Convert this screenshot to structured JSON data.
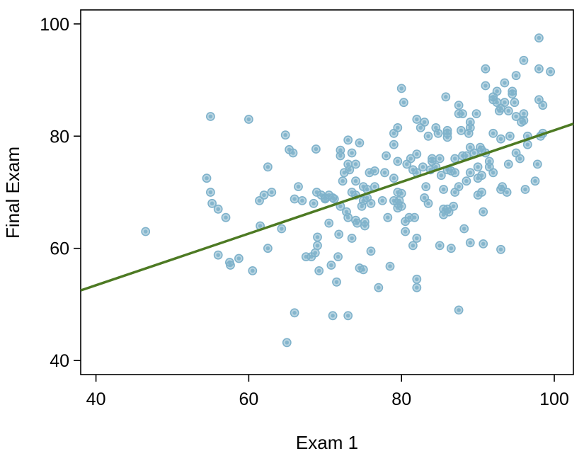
{
  "chart_data": {
    "type": "scatter",
    "title": "",
    "xlabel": "Exam 1",
    "ylabel": "Final Exam",
    "xlim": [
      38,
      102.5
    ],
    "ylim": [
      37.5,
      102.5
    ],
    "xticks": [
      "40",
      "60",
      "80",
      "100"
    ],
    "yticks": [
      "40",
      "60",
      "80",
      "100"
    ],
    "grid": false,
    "point_color": "#7fb2cb",
    "line_color": "#4d7a23",
    "regression_line": {
      "x": [
        38,
        102.5
      ],
      "y": [
        52.5,
        82.2
      ]
    },
    "points": [
      [
        46.5,
        63
      ],
      [
        54.5,
        72.5
      ],
      [
        55,
        83.5
      ],
      [
        55,
        70
      ],
      [
        55.2,
        68
      ],
      [
        56,
        67
      ],
      [
        56,
        58.8
      ],
      [
        57,
        65.5
      ],
      [
        57.5,
        57.5
      ],
      [
        57.6,
        57
      ],
      [
        58.7,
        58.2
      ],
      [
        60,
        83
      ],
      [
        60.5,
        56
      ],
      [
        61.4,
        68.5
      ],
      [
        61.5,
        64
      ],
      [
        62,
        69.5
      ],
      [
        62.5,
        74.5
      ],
      [
        62.5,
        60
      ],
      [
        63,
        70
      ],
      [
        64.3,
        63.5
      ],
      [
        64.8,
        80.2
      ],
      [
        65,
        43.2
      ],
      [
        65.3,
        77.6
      ],
      [
        65.8,
        77
      ],
      [
        66,
        68.8
      ],
      [
        66,
        48.5
      ],
      [
        66.5,
        71
      ],
      [
        67,
        68.5
      ],
      [
        67.5,
        58.5
      ],
      [
        68.2,
        58.5
      ],
      [
        68.5,
        68
      ],
      [
        68.7,
        59.2
      ],
      [
        68.8,
        77.7
      ],
      [
        68.9,
        70
      ],
      [
        69,
        62
      ],
      [
        69,
        60.5
      ],
      [
        69.2,
        56
      ],
      [
        69.5,
        69.5
      ],
      [
        70,
        68.8
      ],
      [
        70,
        69
      ],
      [
        70.5,
        69.5
      ],
      [
        70.5,
        64.5
      ],
      [
        70.8,
        57
      ],
      [
        71,
        48
      ],
      [
        71,
        69
      ],
      [
        71.2,
        68.8
      ],
      [
        71.5,
        54
      ],
      [
        71.7,
        58.5
      ],
      [
        71.8,
        62.5
      ],
      [
        72,
        77.5
      ],
      [
        72,
        76.5
      ],
      [
        72,
        67.5
      ],
      [
        72.3,
        72
      ],
      [
        72.5,
        73.5
      ],
      [
        72.8,
        66.5
      ],
      [
        73,
        75
      ],
      [
        73,
        79.3
      ],
      [
        73,
        65.5
      ],
      [
        73,
        48
      ],
      [
        73.2,
        74
      ],
      [
        73.5,
        70
      ],
      [
        73.5,
        77
      ],
      [
        73.5,
        61.8
      ],
      [
        74,
        69.5
      ],
      [
        74,
        72
      ],
      [
        74,
        75
      ],
      [
        74,
        65
      ],
      [
        74.2,
        64.5
      ],
      [
        74.5,
        56.5
      ],
      [
        74.5,
        78.8
      ],
      [
        74.8,
        67.5
      ],
      [
        75,
        71
      ],
      [
        75,
        68.5
      ],
      [
        75,
        56.2
      ],
      [
        75.2,
        64
      ],
      [
        75.2,
        64.7
      ],
      [
        75.5,
        69
      ],
      [
        75.5,
        70.5
      ],
      [
        75.8,
        73.5
      ],
      [
        76,
        59.5
      ],
      [
        76,
        68
      ],
      [
        76.5,
        71
      ],
      [
        76.5,
        73.8
      ],
      [
        77,
        53
      ],
      [
        77.5,
        68.5
      ],
      [
        77.8,
        73.5
      ],
      [
        78,
        76.5
      ],
      [
        78.2,
        65.5
      ],
      [
        78.5,
        56.8
      ],
      [
        79,
        80.5
      ],
      [
        79,
        78.5
      ],
      [
        79,
        72.5
      ],
      [
        79,
        68.5
      ],
      [
        79.5,
        68
      ],
      [
        79.5,
        70
      ],
      [
        79.5,
        81.5
      ],
      [
        79.5,
        75.5
      ],
      [
        79.5,
        67.2
      ],
      [
        79.7,
        68.5
      ],
      [
        80,
        88.5
      ],
      [
        80,
        69.8
      ],
      [
        80,
        67.5
      ],
      [
        80.3,
        86
      ],
      [
        80.5,
        64.8
      ],
      [
        80.5,
        63
      ],
      [
        80.7,
        75
      ],
      [
        81,
        65.5
      ],
      [
        81.2,
        76
      ],
      [
        81.5,
        60.5
      ],
      [
        81.5,
        74
      ],
      [
        81.7,
        65.5
      ],
      [
        82,
        61.8
      ],
      [
        82,
        54.5
      ],
      [
        82,
        53
      ],
      [
        82,
        73.5
      ],
      [
        82,
        83
      ],
      [
        82,
        76.8
      ],
      [
        82.5,
        81.5
      ],
      [
        82.8,
        74.5
      ],
      [
        83,
        69
      ],
      [
        83,
        82.5
      ],
      [
        83.2,
        71
      ],
      [
        83.5,
        80
      ],
      [
        83.5,
        68
      ],
      [
        83.8,
        74
      ],
      [
        84,
        75.5
      ],
      [
        84,
        76
      ],
      [
        84.5,
        74.5
      ],
      [
        84.5,
        81.5
      ],
      [
        84.8,
        80.5
      ],
      [
        85,
        60.5
      ],
      [
        85,
        76
      ],
      [
        85.2,
        73
      ],
      [
        85.5,
        70.5
      ],
      [
        85.5,
        67
      ],
      [
        85.5,
        66
      ],
      [
        85.8,
        87
      ],
      [
        86,
        81
      ],
      [
        86,
        79.8
      ],
      [
        86,
        80.5
      ],
      [
        86,
        67
      ],
      [
        86,
        74
      ],
      [
        86.2,
        66.5
      ],
      [
        86.5,
        60
      ],
      [
        86.5,
        73.8
      ],
      [
        86.8,
        67.5
      ],
      [
        87,
        73.5
      ],
      [
        87,
        70
      ],
      [
        87,
        76
      ],
      [
        87.5,
        84
      ],
      [
        87.5,
        85.5
      ],
      [
        87.5,
        71
      ],
      [
        87.5,
        49
      ],
      [
        87.8,
        81
      ],
      [
        88,
        76.5
      ],
      [
        88,
        84
      ],
      [
        88.2,
        63.5
      ],
      [
        88.5,
        76.5
      ],
      [
        88.5,
        72
      ],
      [
        88.8,
        80.5
      ],
      [
        89,
        82.5
      ],
      [
        89,
        81.5
      ],
      [
        89,
        78
      ],
      [
        89,
        61
      ],
      [
        89,
        73.5
      ],
      [
        89.5,
        77
      ],
      [
        89.8,
        84
      ],
      [
        90,
        69.5
      ],
      [
        90,
        74.5
      ],
      [
        90,
        72.5
      ],
      [
        90.3,
        78
      ],
      [
        90.5,
        77.5
      ],
      [
        90.5,
        73
      ],
      [
        90.5,
        70
      ],
      [
        90.7,
        66.5
      ],
      [
        90.7,
        60.8
      ],
      [
        91,
        77
      ],
      [
        91,
        92
      ],
      [
        91,
        89
      ],
      [
        91.5,
        75.5
      ],
      [
        91.5,
        74.5
      ],
      [
        92,
        86.5
      ],
      [
        92,
        87
      ],
      [
        92,
        73.5
      ],
      [
        92,
        80.5
      ],
      [
        92.5,
        88
      ],
      [
        92.5,
        86
      ],
      [
        92.8,
        84.5
      ],
      [
        93,
        85
      ],
      [
        93,
        70.5
      ],
      [
        93,
        79.5
      ],
      [
        93,
        59.8
      ],
      [
        93.2,
        71
      ],
      [
        93.5,
        89.5
      ],
      [
        93.5,
        86
      ],
      [
        93.8,
        70
      ],
      [
        94,
        75
      ],
      [
        94,
        84.5
      ],
      [
        94.2,
        80
      ],
      [
        94.5,
        88
      ],
      [
        94.5,
        87.5
      ],
      [
        94.8,
        86
      ],
      [
        95,
        83.5
      ],
      [
        95,
        77
      ],
      [
        95,
        90.8
      ],
      [
        95.5,
        76
      ],
      [
        95.7,
        82.5
      ],
      [
        96,
        93.5
      ],
      [
        96,
        84
      ],
      [
        96,
        82.8
      ],
      [
        96.2,
        70.5
      ],
      [
        96.5,
        78.5
      ],
      [
        96.5,
        80
      ],
      [
        97.5,
        72
      ],
      [
        97.8,
        75
      ],
      [
        98,
        97.5
      ],
      [
        98,
        92
      ],
      [
        98,
        86.5
      ],
      [
        98.2,
        80
      ],
      [
        98.5,
        80.5
      ],
      [
        98.5,
        85.5
      ],
      [
        99.5,
        91.5
      ]
    ]
  }
}
